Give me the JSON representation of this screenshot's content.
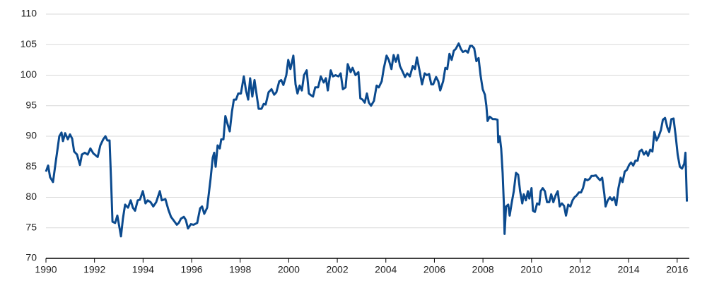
{
  "chart_data": {
    "type": "line",
    "x": [
      1990.0,
      1990.09,
      1990.17,
      1990.29,
      1990.41,
      1990.55,
      1990.64,
      1990.7,
      1990.79,
      1990.9,
      1990.99,
      1991.08,
      1991.16,
      1991.28,
      1991.4,
      1991.48,
      1991.6,
      1991.72,
      1991.83,
      1991.95,
      1992.13,
      1992.24,
      1992.36,
      1992.45,
      1992.53,
      1992.62,
      1992.68,
      1992.74,
      1992.85,
      1992.94,
      1993.03,
      1993.09,
      1993.17,
      1993.26,
      1993.38,
      1993.49,
      1993.58,
      1993.67,
      1993.78,
      1993.87,
      1993.99,
      1994.1,
      1994.19,
      1994.31,
      1994.42,
      1994.54,
      1994.69,
      1994.77,
      1994.92,
      1995.04,
      1995.15,
      1995.3,
      1995.39,
      1995.47,
      1995.56,
      1995.68,
      1995.76,
      1995.85,
      1995.97,
      1996.08,
      1996.23,
      1996.35,
      1996.43,
      1996.52,
      1996.64,
      1996.72,
      1996.78,
      1996.87,
      1996.93,
      1996.99,
      1997.07,
      1997.16,
      1997.22,
      1997.31,
      1997.39,
      1997.48,
      1997.57,
      1997.66,
      1997.74,
      1997.83,
      1997.92,
      1998.03,
      1998.15,
      1998.24,
      1998.33,
      1998.41,
      1998.5,
      1998.59,
      1998.67,
      1998.76,
      1998.88,
      1998.97,
      1999.05,
      1999.17,
      1999.29,
      1999.4,
      1999.49,
      1999.61,
      1999.69,
      1999.78,
      1999.9,
      1999.98,
      2000.07,
      2000.19,
      2000.28,
      2000.36,
      2000.45,
      2000.54,
      2000.63,
      2000.74,
      2000.83,
      2000.92,
      2001.0,
      2001.09,
      2001.21,
      2001.32,
      2001.44,
      2001.53,
      2001.61,
      2001.73,
      2001.82,
      2001.93,
      2002.05,
      2002.14,
      2002.23,
      2002.34,
      2002.43,
      2002.55,
      2002.63,
      2002.75,
      2002.87,
      2002.95,
      2003.04,
      2003.13,
      2003.22,
      2003.3,
      2003.39,
      2003.51,
      2003.62,
      2003.71,
      2003.83,
      2003.91,
      2004.03,
      2004.12,
      2004.23,
      2004.32,
      2004.41,
      2004.5,
      2004.58,
      2004.7,
      2004.79,
      2004.88,
      2004.99,
      2005.11,
      2005.2,
      2005.28,
      2005.4,
      2005.49,
      2005.6,
      2005.69,
      2005.78,
      2005.87,
      2005.95,
      2006.07,
      2006.16,
      2006.24,
      2006.36,
      2006.45,
      2006.53,
      2006.62,
      2006.71,
      2006.8,
      2006.88,
      2007.0,
      2007.09,
      2007.17,
      2007.29,
      2007.38,
      2007.47,
      2007.55,
      2007.64,
      2007.73,
      2007.82,
      2007.9,
      2007.99,
      2008.08,
      2008.14,
      2008.19,
      2008.28,
      2008.4,
      2008.51,
      2008.6,
      2008.63,
      2008.69,
      2008.75,
      2008.81,
      2008.86,
      2008.89,
      2008.95,
      2009.04,
      2009.1,
      2009.18,
      2009.27,
      2009.36,
      2009.45,
      2009.53,
      2009.62,
      2009.68,
      2009.77,
      2009.85,
      2009.91,
      2010.0,
      2010.06,
      2010.14,
      2010.23,
      2010.32,
      2010.38,
      2010.46,
      2010.55,
      2010.64,
      2010.73,
      2010.81,
      2010.9,
      2010.99,
      2011.08,
      2011.16,
      2011.25,
      2011.34,
      2011.42,
      2011.51,
      2011.6,
      2011.69,
      2011.77,
      2011.86,
      2011.95,
      2012.04,
      2012.12,
      2012.21,
      2012.3,
      2012.39,
      2012.47,
      2012.56,
      2012.65,
      2012.73,
      2012.82,
      2012.91,
      2013.0,
      2013.05,
      2013.14,
      2013.23,
      2013.32,
      2013.4,
      2013.49,
      2013.58,
      2013.67,
      2013.75,
      2013.84,
      2013.93,
      2014.02,
      2014.1,
      2014.19,
      2014.28,
      2014.37,
      2014.45,
      2014.54,
      2014.63,
      2014.72,
      2014.8,
      2014.89,
      2014.98,
      2015.06,
      2015.15,
      2015.24,
      2015.33,
      2015.41,
      2015.5,
      2015.59,
      2015.67,
      2015.76,
      2015.85,
      2015.94,
      2016.02,
      2016.11,
      2016.2,
      2016.29,
      2016.34,
      2016.4
    ],
    "series": [
      {
        "color": "#0b4a8e",
        "values": [
          84.2,
          85.2,
          83.3,
          82.5,
          86,
          90,
          90.6,
          89.2,
          90.5,
          89.5,
          90.3,
          89.6,
          87.5,
          87,
          85.3,
          87,
          87.3,
          87,
          88,
          87.2,
          86.6,
          88.5,
          89.5,
          90,
          89.3,
          89.3,
          83,
          76,
          75.8,
          77,
          75,
          73.6,
          76.5,
          78.8,
          78.3,
          79.5,
          78.3,
          77.8,
          79.5,
          79.6,
          81,
          79,
          79.5,
          79.2,
          78.5,
          79.2,
          81,
          79.5,
          79.7,
          78,
          76.8,
          76,
          75.5,
          75.8,
          76.5,
          76.8,
          76.3,
          74.9,
          75.6,
          75.5,
          75.8,
          78.2,
          78.5,
          77.3,
          78.3,
          81,
          83,
          86.5,
          87.3,
          85,
          88.5,
          88,
          89.5,
          89.5,
          93.3,
          92,
          90.8,
          94,
          96,
          96,
          97,
          97,
          99.8,
          97.5,
          96,
          99.5,
          96.5,
          99.2,
          97,
          94.5,
          94.5,
          95.3,
          95.2,
          97.2,
          97.7,
          96.8,
          97.2,
          99,
          99.2,
          98.4,
          100,
          102.5,
          101,
          103.2,
          98.5,
          97,
          98.3,
          97.5,
          100,
          100.8,
          97,
          96.7,
          96.5,
          98,
          98,
          99.8,
          98.8,
          99.5,
          97.5,
          100.8,
          99.8,
          100,
          99.8,
          100.3,
          97.7,
          98,
          101.8,
          100.5,
          101.2,
          100,
          100.5,
          96.2,
          96,
          95.5,
          97,
          95.5,
          95,
          95.8,
          98.3,
          98,
          99,
          101,
          103.2,
          102.5,
          101,
          103.3,
          102.2,
          103.3,
          101.5,
          100.5,
          99.7,
          100.3,
          99.8,
          101.5,
          101,
          102.9,
          100.5,
          98.5,
          100.3,
          100,
          100.2,
          98.5,
          98.5,
          99.7,
          99,
          97.5,
          99,
          101.2,
          101,
          103.5,
          102.5,
          104,
          104.3,
          105.2,
          104.3,
          103.8,
          104,
          103.7,
          104.8,
          104.8,
          104.4,
          102.3,
          102.8,
          100,
          97.7,
          96.8,
          95,
          92.5,
          93.2,
          92.8,
          92.8,
          92.7,
          89,
          90,
          88,
          84,
          79,
          74,
          78.5,
          78.8,
          77,
          79,
          81,
          84,
          83.7,
          81,
          79,
          80.5,
          79.5,
          81,
          79.8,
          81.5,
          77.8,
          77.6,
          79,
          78.8,
          81,
          81.5,
          81,
          79.2,
          79.2,
          80.5,
          79.2,
          80.3,
          81,
          78.5,
          79,
          78.6,
          77,
          78.8,
          78.5,
          79.5,
          80,
          80.3,
          80.8,
          80.8,
          81.5,
          83,
          82.8,
          83,
          83.5,
          83.5,
          83.6,
          83.2,
          82.8,
          83.2,
          80.5,
          78.5,
          79.5,
          80,
          79.5,
          80,
          78.7,
          81.5,
          83.2,
          82.5,
          84.2,
          84.5,
          85.3,
          85.7,
          85.2,
          86,
          86,
          87.5,
          87.8,
          87,
          87.5,
          86.8,
          87.8,
          87.5,
          90.7,
          89.3,
          90,
          91,
          92.7,
          93,
          91.5,
          90.7,
          92.8,
          92.9,
          90,
          87,
          85,
          84.7,
          85.5,
          87.3,
          79.3
        ]
      }
    ],
    "xlim": [
      1990,
      2016.5
    ],
    "xticks": [
      1990,
      1992,
      1994,
      1996,
      1998,
      2000,
      2002,
      2004,
      2006,
      2008,
      2010,
      2012,
      2014,
      2016
    ],
    "ylim": [
      70,
      110
    ],
    "yticks": [
      70,
      75,
      80,
      85,
      90,
      95,
      100,
      105,
      110
    ],
    "grid": true
  }
}
